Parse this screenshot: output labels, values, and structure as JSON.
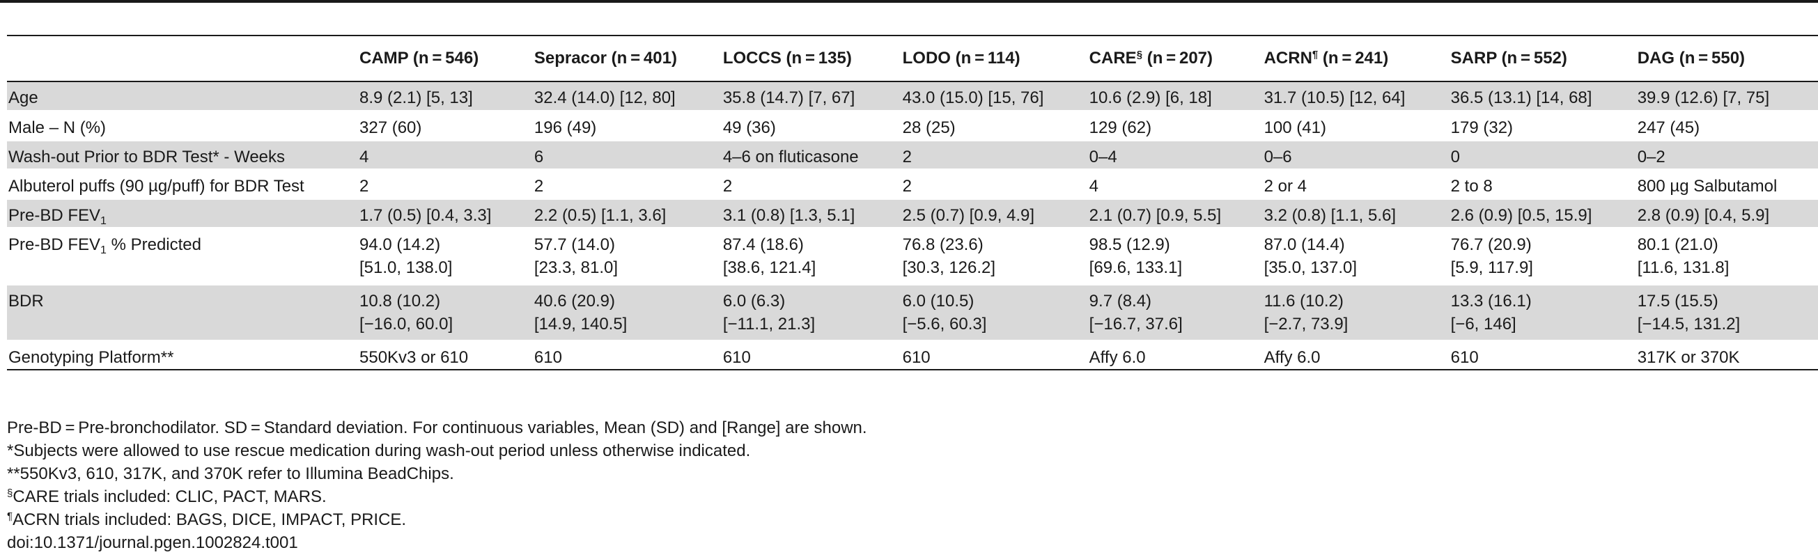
{
  "columns": [
    {
      "name": "CAMP",
      "sup": "",
      "n": "(n = 546)"
    },
    {
      "name": "Sepracor",
      "sup": "",
      "n": "(n = 401)"
    },
    {
      "name": "LOCCS",
      "sup": "",
      "n": "(n = 135)"
    },
    {
      "name": "LODO",
      "sup": "",
      "n": "(n = 114)"
    },
    {
      "name": "CARE",
      "sup": "§",
      "n": "(n = 207)"
    },
    {
      "name": "ACRN",
      "sup": "¶",
      "n": "(n = 241)"
    },
    {
      "name": "SARP",
      "sup": "",
      "n": "(n = 552)"
    },
    {
      "name": "DAG",
      "sup": "",
      "n": "(n = 550)"
    }
  ],
  "rows": [
    {
      "label": "Age",
      "values": [
        [
          "8.9 (2.1) [5, 13]"
        ],
        [
          "32.4 (14.0) [12, 80]"
        ],
        [
          "35.8 (14.7) [7, 67]"
        ],
        [
          "43.0 (15.0) [15, 76]"
        ],
        [
          "10.6 (2.9) [6, 18]"
        ],
        [
          "31.7 (10.5) [12, 64]"
        ],
        [
          "36.5 (13.1) [14, 68]"
        ],
        [
          "39.9 (12.6) [7, 75]"
        ]
      ]
    },
    {
      "label": "Male – N (%)",
      "values": [
        [
          "327 (60)"
        ],
        [
          "196 (49)"
        ],
        [
          "49 (36)"
        ],
        [
          "28 (25)"
        ],
        [
          "129 (62)"
        ],
        [
          "100 (41)"
        ],
        [
          "179 (32)"
        ],
        [
          "247 (45)"
        ]
      ]
    },
    {
      "label": "Wash-out Prior to BDR Test* - Weeks",
      "values": [
        [
          "4"
        ],
        [
          "6"
        ],
        [
          "4–6 on fluticasone"
        ],
        [
          "2"
        ],
        [
          "0–4"
        ],
        [
          "0–6"
        ],
        [
          "0"
        ],
        [
          "0–2"
        ]
      ]
    },
    {
      "label": "Albuterol puffs (90 µg/puff) for BDR Test",
      "values": [
        [
          "2"
        ],
        [
          "2"
        ],
        [
          "2"
        ],
        [
          "2"
        ],
        [
          "4"
        ],
        [
          "2 or 4"
        ],
        [
          "2 to 8"
        ],
        [
          "800 µg Salbutamol"
        ]
      ]
    },
    {
      "label": "Pre-BD FEV",
      "label_sub": "1",
      "values": [
        [
          "1.7 (0.5) [0.4, 3.3]"
        ],
        [
          "2.2 (0.5) [1.1, 3.6]"
        ],
        [
          "3.1 (0.8) [1.3, 5.1]"
        ],
        [
          "2.5 (0.7) [0.9, 4.9]"
        ],
        [
          "2.1 (0.7) [0.9, 5.5]"
        ],
        [
          "3.2 (0.8) [1.1, 5.6]"
        ],
        [
          "2.6 (0.9) [0.5, 15.9]"
        ],
        [
          "2.8 (0.9) [0.4, 5.9]"
        ]
      ]
    },
    {
      "label": "Pre-BD FEV",
      "label_sub": "1",
      "label_suffix": " % Predicted",
      "values": [
        [
          "94.0 (14.2)",
          "[51.0, 138.0]"
        ],
        [
          "57.7 (14.0)",
          "[23.3, 81.0]"
        ],
        [
          "87.4 (18.6)",
          "[38.6, 121.4]"
        ],
        [
          "76.8 (23.6)",
          "[30.3, 126.2]"
        ],
        [
          "98.5 (12.9)",
          "[69.6, 133.1]"
        ],
        [
          "87.0 (14.4)",
          "[35.0, 137.0]"
        ],
        [
          "76.7 (20.9)",
          "[5.9, 117.9]"
        ],
        [
          "80.1 (21.0)",
          "[11.6, 131.8]"
        ]
      ]
    },
    {
      "label": "BDR",
      "values": [
        [
          "10.8 (10.2)",
          "[−16.0, 60.0]"
        ],
        [
          "40.6 (20.9)",
          "[14.9, 140.5]"
        ],
        [
          "6.0 (6.3)",
          "[−11.1, 21.3]"
        ],
        [
          "6.0 (10.5)",
          "[−5.6, 60.3]"
        ],
        [
          "9.7 (8.4)",
          "[−16.7, 37.6]"
        ],
        [
          "11.6 (10.2)",
          "[−2.7, 73.9]"
        ],
        [
          "13.3 (16.1)",
          "[−6, 146]"
        ],
        [
          "17.5 (15.5)",
          "[−14.5, 131.2]"
        ]
      ]
    },
    {
      "label": "Genotyping Platform**",
      "values": [
        [
          "550Kv3 or 610"
        ],
        [
          "610"
        ],
        [
          "610"
        ],
        [
          "610"
        ],
        [
          "Affy 6.0"
        ],
        [
          "Affy 6.0"
        ],
        [
          "610"
        ],
        [
          "317K or 370K"
        ]
      ]
    }
  ],
  "notes": [
    {
      "sup": "",
      "text": "Pre-BD = Pre-bronchodilator. SD = Standard deviation. For continuous variables, Mean (SD) and [Range] are shown."
    },
    {
      "sup": "",
      "text": "*Subjects were allowed to use rescue medication during wash-out period unless otherwise indicated."
    },
    {
      "sup": "",
      "text": "**550Kv3, 610, 317K, and 370K refer to Illumina BeadChips."
    },
    {
      "sup": "§",
      "text": "CARE trials included: CLIC, PACT, MARS."
    },
    {
      "sup": "¶",
      "text": "ACRN trials included: BAGS, DICE, IMPACT, PRICE."
    },
    {
      "sup": "",
      "text": "doi:10.1371/journal.pgen.1002824.t001"
    }
  ],
  "colors": {
    "shade": "#d9d9d9",
    "rule": "#1a1a1a"
  }
}
